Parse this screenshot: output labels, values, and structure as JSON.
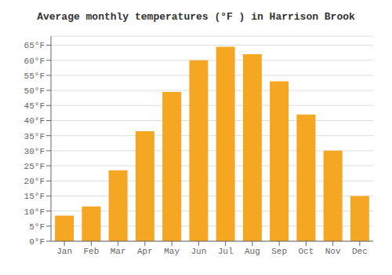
{
  "chart_data": {
    "type": "bar",
    "title": "Average monthly temperatures (°F ) in Harrison Brook",
    "categories": [
      "Jan",
      "Feb",
      "Mar",
      "Apr",
      "May",
      "Jun",
      "Jul",
      "Aug",
      "Sep",
      "Oct",
      "Nov",
      "Dec"
    ],
    "values": [
      8.5,
      11.5,
      23.5,
      36.5,
      49.5,
      60.0,
      64.5,
      62.0,
      53.0,
      42.0,
      30.0,
      15.0
    ],
    "color": "#F5A623",
    "ylim": [
      0,
      68
    ],
    "yticks": [
      {
        "value": 0,
        "label": "0°F"
      },
      {
        "value": 5,
        "label": "5°F"
      },
      {
        "value": 10,
        "label": "10°F"
      },
      {
        "value": 15,
        "label": "15°F"
      },
      {
        "value": 20,
        "label": "20°F"
      },
      {
        "value": 25,
        "label": "25°F"
      },
      {
        "value": 30,
        "label": "30°F"
      },
      {
        "value": 35,
        "label": "35°F"
      },
      {
        "value": 40,
        "label": "40°F"
      },
      {
        "value": 45,
        "label": "45°F"
      },
      {
        "value": 50,
        "label": "50°F"
      },
      {
        "value": 55,
        "label": "55°F"
      },
      {
        "value": 60,
        "label": "60°F"
      },
      {
        "value": 65,
        "label": "65°F"
      }
    ],
    "grid": true
  }
}
